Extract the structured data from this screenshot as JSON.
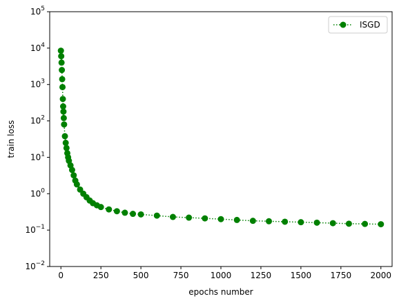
{
  "chart_data": {
    "type": "scatter",
    "xlabel": "epochs number",
    "ylabel": "train loss",
    "xlim": [
      -70,
      2070
    ],
    "ylim": [
      0.01,
      100000
    ],
    "yscale": "log",
    "grid": false,
    "legend_position": "top-right",
    "x_ticks": [
      0,
      250,
      500,
      750,
      1000,
      1250,
      1500,
      1750,
      2000
    ],
    "y_ticks": [
      {
        "value": 0.01,
        "base": "10",
        "exp": "−2"
      },
      {
        "value": 0.1,
        "base": "10",
        "exp": "−1"
      },
      {
        "value": 1,
        "base": "10",
        "exp": "0"
      },
      {
        "value": 10,
        "base": "10",
        "exp": "1"
      },
      {
        "value": 100,
        "base": "10",
        "exp": "2"
      },
      {
        "value": 1000,
        "base": "10",
        "exp": "3"
      },
      {
        "value": 10000,
        "base": "10",
        "exp": "4"
      },
      {
        "value": 100000,
        "base": "10",
        "exp": "5"
      }
    ],
    "series": [
      {
        "name": "ISGD",
        "color": "#008000",
        "marker": "circle",
        "line_style": "dotted",
        "x": [
          0,
          2,
          4,
          6,
          8,
          10,
          12,
          14,
          16,
          18,
          20,
          25,
          30,
          35,
          40,
          45,
          50,
          60,
          70,
          80,
          90,
          100,
          120,
          140,
          160,
          180,
          200,
          225,
          250,
          300,
          350,
          400,
          450,
          500,
          600,
          700,
          800,
          900,
          1000,
          1100,
          1200,
          1300,
          1400,
          1500,
          1600,
          1700,
          1800,
          1900,
          2000
        ],
        "y": [
          8500,
          6000,
          4000,
          2500,
          1400,
          850,
          400,
          250,
          180,
          120,
          80,
          38,
          25,
          18,
          13,
          10,
          8,
          6,
          4.5,
          3.2,
          2.3,
          1.8,
          1.3,
          1.0,
          0.8,
          0.65,
          0.55,
          0.48,
          0.43,
          0.37,
          0.33,
          0.3,
          0.28,
          0.27,
          0.25,
          0.23,
          0.22,
          0.21,
          0.2,
          0.19,
          0.18,
          0.175,
          0.17,
          0.165,
          0.16,
          0.155,
          0.15,
          0.148,
          0.145
        ]
      }
    ]
  }
}
